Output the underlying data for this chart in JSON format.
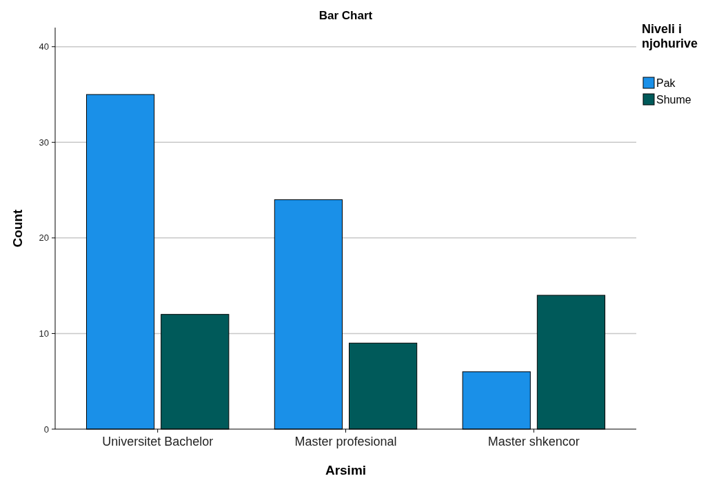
{
  "chart_data": {
    "type": "bar",
    "title": "Bar Chart",
    "xlabel": "Arsimi",
    "ylabel": "Count",
    "legend_title": "Niveli i njohurive",
    "categories": [
      "Universitet Bachelor",
      "Master profesional",
      "Master shkencor"
    ],
    "series": [
      {
        "name": "Pak",
        "color": "#1a90e8",
        "values": [
          35,
          24,
          6
        ]
      },
      {
        "name": "Shume",
        "color": "#005a5a",
        "values": [
          12,
          9,
          14
        ]
      }
    ],
    "ylim": [
      0,
      42
    ],
    "yticks": [
      0,
      10,
      20,
      30,
      40
    ],
    "grid": "y",
    "legend": "top right"
  }
}
